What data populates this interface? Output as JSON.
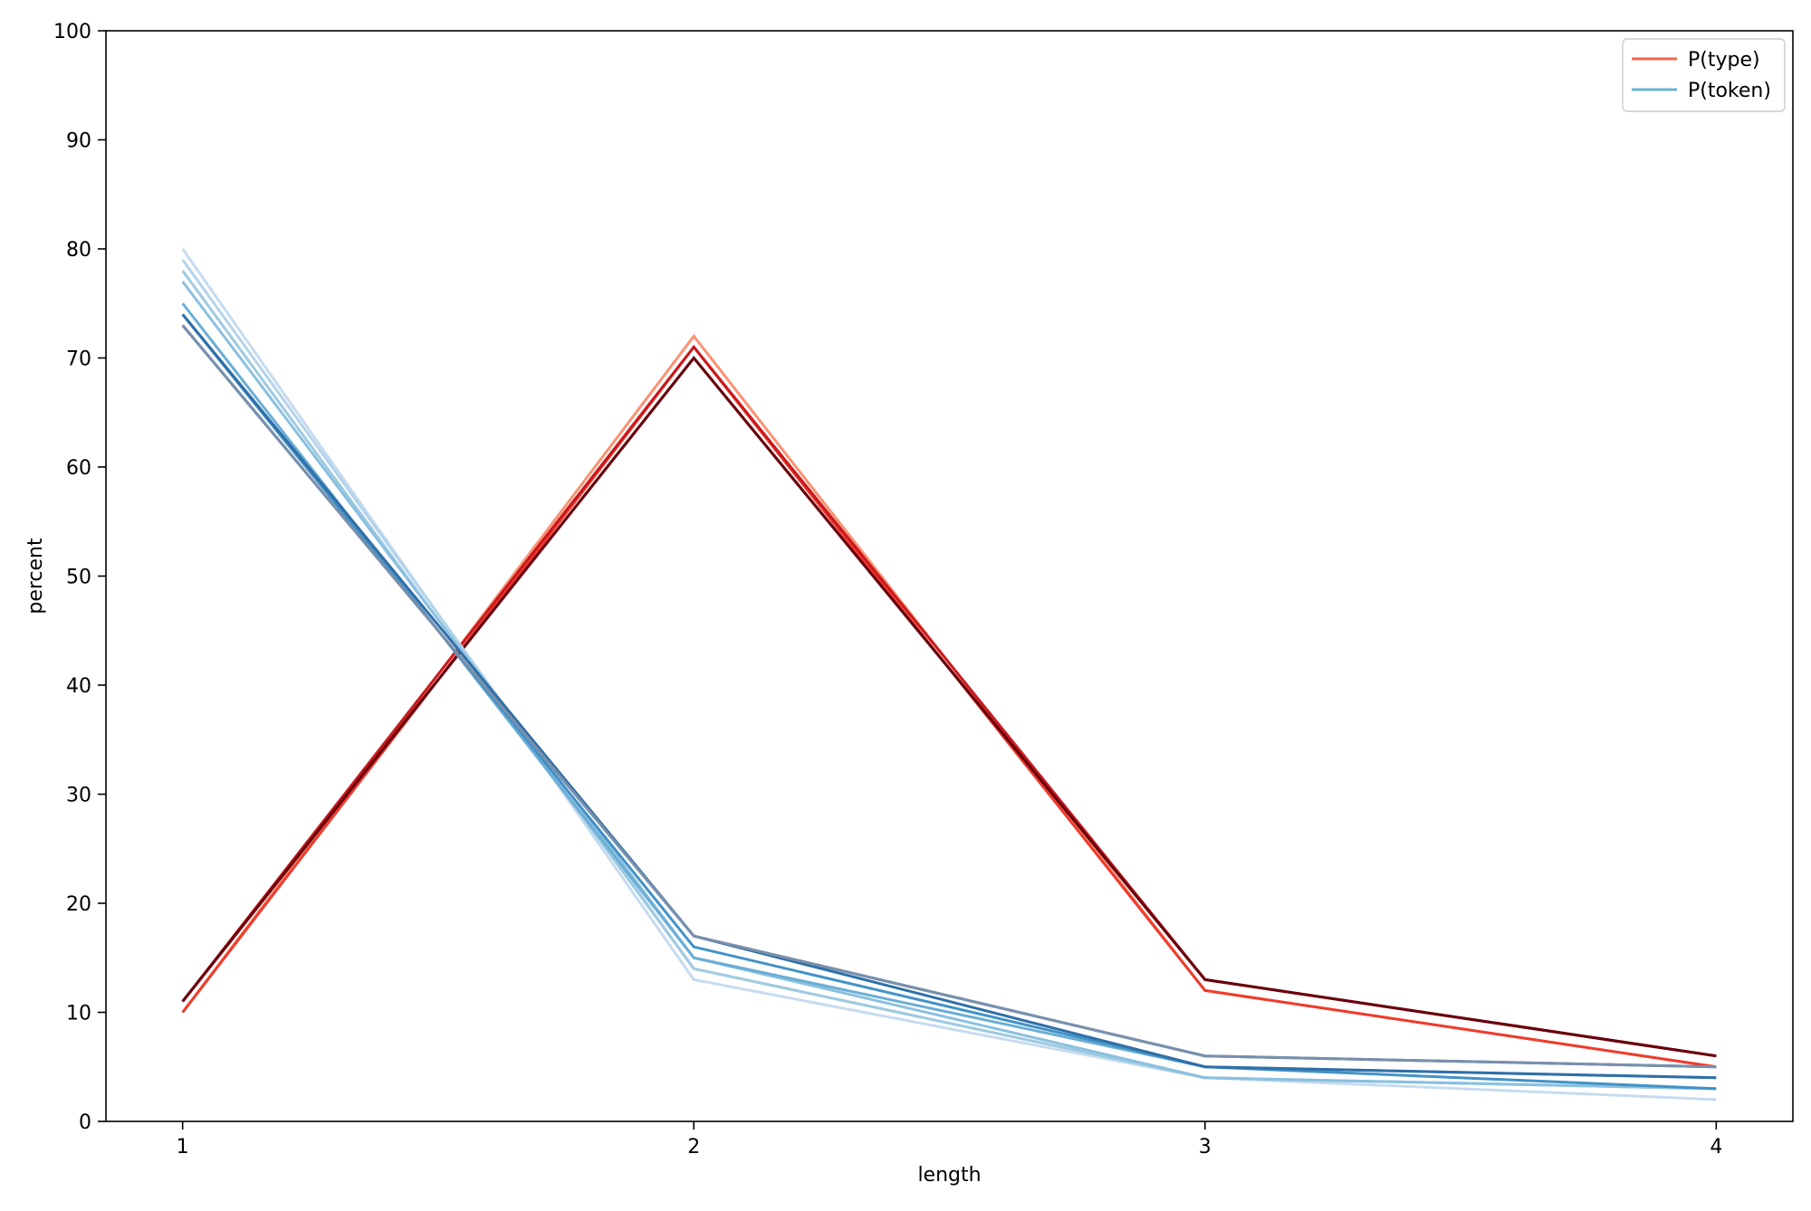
{
  "chart_data": {
    "type": "line",
    "title": "",
    "xlabel": "length",
    "ylabel": "percent",
    "x": [
      1,
      2,
      3,
      4
    ],
    "xlim": [
      0.85,
      4.15
    ],
    "ylim": [
      0,
      100
    ],
    "xticks": [
      1,
      2,
      3,
      4
    ],
    "yticks": [
      0,
      10,
      20,
      30,
      40,
      50,
      60,
      70,
      80,
      90,
      100
    ],
    "grid": false,
    "legend": {
      "position": "top-right",
      "entries": [
        {
          "label": "P(type)",
          "color": "#ef6548"
        },
        {
          "label": "P(token)",
          "color": "#6baed6"
        }
      ]
    },
    "series": [
      {
        "group": "P(type)",
        "color": "#fc9272",
        "values": [
          10,
          72,
          12,
          5
        ]
      },
      {
        "group": "P(type)",
        "color": "#ef3b2c",
        "values": [
          10,
          71,
          12,
          5
        ]
      },
      {
        "group": "P(type)",
        "color": "#cb181d",
        "values": [
          11,
          71,
          13,
          6
        ]
      },
      {
        "group": "P(type)",
        "color": "#99000d",
        "values": [
          11,
          70,
          13,
          6
        ]
      },
      {
        "group": "P(type)",
        "color": "#67000d",
        "values": [
          11,
          70,
          13,
          6
        ]
      },
      {
        "group": "P(token)",
        "color": "#c6dbef",
        "values": [
          80,
          13,
          4,
          2
        ]
      },
      {
        "group": "P(token)",
        "color": "#b3d3ea",
        "values": [
          79,
          14,
          4,
          3
        ]
      },
      {
        "group": "P(token)",
        "color": "#9ecae1",
        "values": [
          78,
          14,
          4,
          3
        ]
      },
      {
        "group": "P(token)",
        "color": "#8ac0e0",
        "values": [
          77,
          15,
          4,
          3
        ]
      },
      {
        "group": "P(token)",
        "color": "#6baed6",
        "values": [
          75,
          15,
          5,
          4
        ]
      },
      {
        "group": "P(token)",
        "color": "#4292c6",
        "values": [
          74,
          16,
          5,
          3
        ]
      },
      {
        "group": "P(token)",
        "color": "#2f6fa8",
        "values": [
          74,
          17,
          5,
          4
        ]
      },
      {
        "group": "P(token)",
        "color": "#4a6e98",
        "values": [
          73,
          17,
          6,
          5
        ]
      },
      {
        "group": "P(token)",
        "color": "#7890ad",
        "values": [
          73,
          17,
          6,
          5
        ]
      }
    ]
  }
}
